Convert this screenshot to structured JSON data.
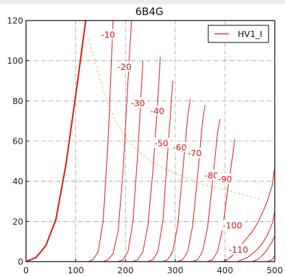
{
  "chart_data": {
    "type": "line",
    "title": "6B4G",
    "xlabel": "",
    "ylabel": "",
    "xlim": [
      0,
      500
    ],
    "ylim": [
      0,
      120
    ],
    "x_ticks": [
      0,
      100,
      200,
      300,
      400,
      500
    ],
    "y_ticks": [
      0,
      20,
      40,
      60,
      80,
      100,
      120
    ],
    "grid": true,
    "legend": {
      "placement": "top-right",
      "entries": [
        "HV1_I"
      ]
    },
    "colors": {
      "series": "#dd1111",
      "load_line": "#f0b060",
      "grid": "#999999",
      "frame": "#000000"
    },
    "series": [
      {
        "name": "HV1_I",
        "x": [
          0,
          20,
          40,
          60,
          80,
          100,
          120
        ],
        "y": [
          0,
          2,
          8,
          21,
          48,
          83,
          120
        ]
      }
    ],
    "grid_curves": [
      {
        "label": "-10",
        "label_at": [
          165,
          113
        ],
        "x": [
          125,
          135,
          145,
          155,
          165,
          175
        ],
        "y": [
          0,
          1,
          5,
          20,
          60,
          120
        ]
      },
      {
        "label": "-20",
        "label_at": [
          198,
          97
        ],
        "x": [
          155,
          165,
          175,
          185,
          195,
          205,
          212
        ],
        "y": [
          0,
          1,
          4,
          15,
          45,
          90,
          120
        ]
      },
      {
        "label": "-30",
        "label_at": [
          225,
          79
        ],
        "x": [
          185,
          195,
          205,
          215,
          225,
          235
        ],
        "y": [
          0,
          1,
          5,
          20,
          55,
          100
        ]
      },
      {
        "label": "-40",
        "label_at": [
          264,
          75
        ],
        "x": [
          215,
          225,
          235,
          245,
          255,
          265,
          270
        ],
        "y": [
          0,
          1,
          5,
          18,
          45,
          80,
          102
        ]
      },
      {
        "label": "-50",
        "label_at": [
          272,
          59
        ],
        "x": [
          245,
          255,
          265,
          275,
          285,
          295
        ],
        "y": [
          0,
          1,
          5,
          20,
          55,
          90
        ]
      },
      {
        "label": "-60",
        "label_at": [
          309,
          57
        ],
        "x": [
          275,
          285,
          295,
          305,
          315,
          325,
          330
        ],
        "y": [
          0,
          1,
          5,
          18,
          45,
          72,
          81
        ]
      },
      {
        "label": "-70",
        "label_at": [
          339,
          54
        ],
        "x": [
          305,
          315,
          325,
          335,
          345,
          355,
          360
        ],
        "y": [
          0,
          1,
          5,
          18,
          43,
          70,
          78
        ]
      },
      {
        "label": "-80",
        "label_at": [
          373,
          43
        ],
        "x": [
          335,
          345,
          355,
          365,
          375,
          385,
          390
        ],
        "y": [
          0,
          1,
          5,
          17,
          40,
          64,
          71
        ]
      },
      {
        "label": "-90",
        "label_at": [
          400,
          41
        ],
        "x": [
          365,
          375,
          385,
          395,
          405,
          415,
          420
        ],
        "y": [
          0,
          1,
          5,
          16,
          35,
          52,
          61
        ]
      },
      {
        "label": "-100",
        "label_at": [
          415,
          18
        ],
        "x": [
          395,
          405,
          415,
          425,
          435,
          445,
          455,
          465,
          475,
          485,
          495,
          500
        ],
        "y": [
          0,
          1,
          3,
          6,
          9,
          12,
          15,
          19,
          24,
          30,
          38,
          47
        ]
      },
      {
        "label": "-110",
        "label_at": [
          427,
          6
        ],
        "x": [
          425,
          435,
          445,
          455,
          465,
          475,
          485,
          495,
          500
        ],
        "y": [
          0,
          1,
          2,
          4,
          6,
          9,
          13,
          19,
          25
        ]
      },
      {
        "label": "",
        "x": [
          455,
          465,
          475,
          485,
          495,
          500
        ],
        "y": [
          0,
          1,
          3,
          6,
          10,
          13
        ]
      },
      {
        "label": "",
        "x": [
          485,
          495,
          500
        ],
        "y": [
          0,
          1,
          3
        ]
      }
    ],
    "load_line": {
      "x": [
        125,
        140,
        160,
        180,
        200,
        225,
        250,
        280,
        300,
        330,
        360,
        400,
        440,
        470
      ],
      "y": [
        111,
        98,
        82,
        70,
        62,
        55,
        50,
        46,
        44,
        41,
        38,
        36,
        33,
        31
      ]
    }
  }
}
